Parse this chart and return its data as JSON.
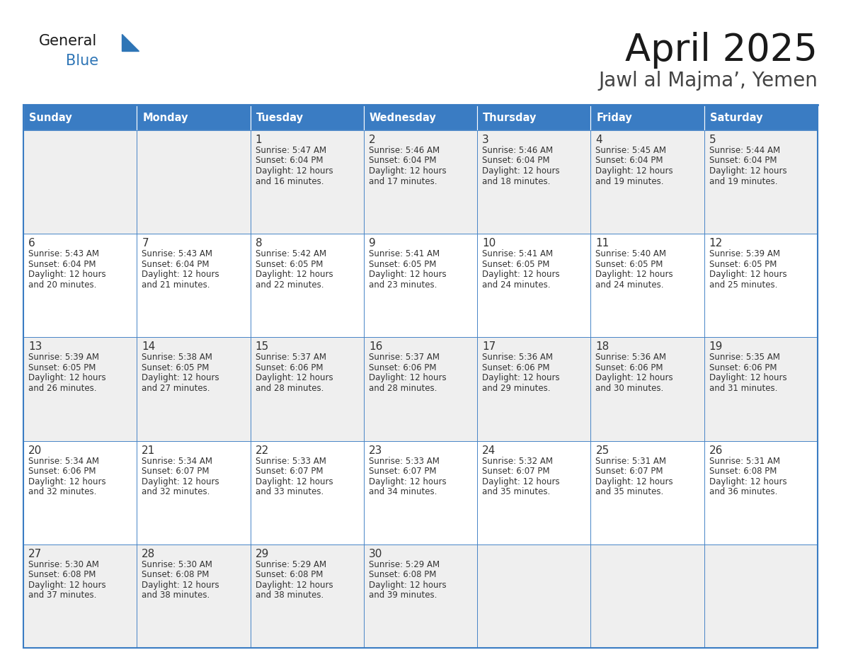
{
  "title": "April 2025",
  "subtitle": "Jawl al Majma’, Yemen",
  "header_color": "#3A7CC3",
  "header_text_color": "#FFFFFF",
  "day_names": [
    "Sunday",
    "Monday",
    "Tuesday",
    "Wednesday",
    "Thursday",
    "Friday",
    "Saturday"
  ],
  "bg_color": "#FFFFFF",
  "cell_bg_even": "#EFEFEF",
  "cell_bg_odd": "#FFFFFF",
  "cell_border_color": "#3A7CC3",
  "text_color": "#333333",
  "logo_general_color": "#1a1a1a",
  "logo_blue_color": "#2E75B6",
  "logo_triangle_color": "#2E75B6",
  "days": [
    {
      "row": 0,
      "col": 0,
      "num": "",
      "sunrise": "",
      "sunset": "",
      "daylight": ""
    },
    {
      "row": 0,
      "col": 1,
      "num": "",
      "sunrise": "",
      "sunset": "",
      "daylight": ""
    },
    {
      "row": 0,
      "col": 2,
      "num": "1",
      "sunrise": "5:47 AM",
      "sunset": "6:04 PM",
      "daylight": "12 hours\nand 16 minutes."
    },
    {
      "row": 0,
      "col": 3,
      "num": "2",
      "sunrise": "5:46 AM",
      "sunset": "6:04 PM",
      "daylight": "12 hours\nand 17 minutes."
    },
    {
      "row": 0,
      "col": 4,
      "num": "3",
      "sunrise": "5:46 AM",
      "sunset": "6:04 PM",
      "daylight": "12 hours\nand 18 minutes."
    },
    {
      "row": 0,
      "col": 5,
      "num": "4",
      "sunrise": "5:45 AM",
      "sunset": "6:04 PM",
      "daylight": "12 hours\nand 19 minutes."
    },
    {
      "row": 0,
      "col": 6,
      "num": "5",
      "sunrise": "5:44 AM",
      "sunset": "6:04 PM",
      "daylight": "12 hours\nand 19 minutes."
    },
    {
      "row": 1,
      "col": 0,
      "num": "6",
      "sunrise": "5:43 AM",
      "sunset": "6:04 PM",
      "daylight": "12 hours\nand 20 minutes."
    },
    {
      "row": 1,
      "col": 1,
      "num": "7",
      "sunrise": "5:43 AM",
      "sunset": "6:04 PM",
      "daylight": "12 hours\nand 21 minutes."
    },
    {
      "row": 1,
      "col": 2,
      "num": "8",
      "sunrise": "5:42 AM",
      "sunset": "6:05 PM",
      "daylight": "12 hours\nand 22 minutes."
    },
    {
      "row": 1,
      "col": 3,
      "num": "9",
      "sunrise": "5:41 AM",
      "sunset": "6:05 PM",
      "daylight": "12 hours\nand 23 minutes."
    },
    {
      "row": 1,
      "col": 4,
      "num": "10",
      "sunrise": "5:41 AM",
      "sunset": "6:05 PM",
      "daylight": "12 hours\nand 24 minutes."
    },
    {
      "row": 1,
      "col": 5,
      "num": "11",
      "sunrise": "5:40 AM",
      "sunset": "6:05 PM",
      "daylight": "12 hours\nand 24 minutes."
    },
    {
      "row": 1,
      "col": 6,
      "num": "12",
      "sunrise": "5:39 AM",
      "sunset": "6:05 PM",
      "daylight": "12 hours\nand 25 minutes."
    },
    {
      "row": 2,
      "col": 0,
      "num": "13",
      "sunrise": "5:39 AM",
      "sunset": "6:05 PM",
      "daylight": "12 hours\nand 26 minutes."
    },
    {
      "row": 2,
      "col": 1,
      "num": "14",
      "sunrise": "5:38 AM",
      "sunset": "6:05 PM",
      "daylight": "12 hours\nand 27 minutes."
    },
    {
      "row": 2,
      "col": 2,
      "num": "15",
      "sunrise": "5:37 AM",
      "sunset": "6:06 PM",
      "daylight": "12 hours\nand 28 minutes."
    },
    {
      "row": 2,
      "col": 3,
      "num": "16",
      "sunrise": "5:37 AM",
      "sunset": "6:06 PM",
      "daylight": "12 hours\nand 28 minutes."
    },
    {
      "row": 2,
      "col": 4,
      "num": "17",
      "sunrise": "5:36 AM",
      "sunset": "6:06 PM",
      "daylight": "12 hours\nand 29 minutes."
    },
    {
      "row": 2,
      "col": 5,
      "num": "18",
      "sunrise": "5:36 AM",
      "sunset": "6:06 PM",
      "daylight": "12 hours\nand 30 minutes."
    },
    {
      "row": 2,
      "col": 6,
      "num": "19",
      "sunrise": "5:35 AM",
      "sunset": "6:06 PM",
      "daylight": "12 hours\nand 31 minutes."
    },
    {
      "row": 3,
      "col": 0,
      "num": "20",
      "sunrise": "5:34 AM",
      "sunset": "6:06 PM",
      "daylight": "12 hours\nand 32 minutes."
    },
    {
      "row": 3,
      "col": 1,
      "num": "21",
      "sunrise": "5:34 AM",
      "sunset": "6:07 PM",
      "daylight": "12 hours\nand 32 minutes."
    },
    {
      "row": 3,
      "col": 2,
      "num": "22",
      "sunrise": "5:33 AM",
      "sunset": "6:07 PM",
      "daylight": "12 hours\nand 33 minutes."
    },
    {
      "row": 3,
      "col": 3,
      "num": "23",
      "sunrise": "5:33 AM",
      "sunset": "6:07 PM",
      "daylight": "12 hours\nand 34 minutes."
    },
    {
      "row": 3,
      "col": 4,
      "num": "24",
      "sunrise": "5:32 AM",
      "sunset": "6:07 PM",
      "daylight": "12 hours\nand 35 minutes."
    },
    {
      "row": 3,
      "col": 5,
      "num": "25",
      "sunrise": "5:31 AM",
      "sunset": "6:07 PM",
      "daylight": "12 hours\nand 35 minutes."
    },
    {
      "row": 3,
      "col": 6,
      "num": "26",
      "sunrise": "5:31 AM",
      "sunset": "6:08 PM",
      "daylight": "12 hours\nand 36 minutes."
    },
    {
      "row": 4,
      "col": 0,
      "num": "27",
      "sunrise": "5:30 AM",
      "sunset": "6:08 PM",
      "daylight": "12 hours\nand 37 minutes."
    },
    {
      "row": 4,
      "col": 1,
      "num": "28",
      "sunrise": "5:30 AM",
      "sunset": "6:08 PM",
      "daylight": "12 hours\nand 38 minutes."
    },
    {
      "row": 4,
      "col": 2,
      "num": "29",
      "sunrise": "5:29 AM",
      "sunset": "6:08 PM",
      "daylight": "12 hours\nand 38 minutes."
    },
    {
      "row": 4,
      "col": 3,
      "num": "30",
      "sunrise": "5:29 AM",
      "sunset": "6:08 PM",
      "daylight": "12 hours\nand 39 minutes."
    },
    {
      "row": 4,
      "col": 4,
      "num": "",
      "sunrise": "",
      "sunset": "",
      "daylight": ""
    },
    {
      "row": 4,
      "col": 5,
      "num": "",
      "sunrise": "",
      "sunset": "",
      "daylight": ""
    },
    {
      "row": 4,
      "col": 6,
      "num": "",
      "sunrise": "",
      "sunset": "",
      "daylight": ""
    }
  ]
}
